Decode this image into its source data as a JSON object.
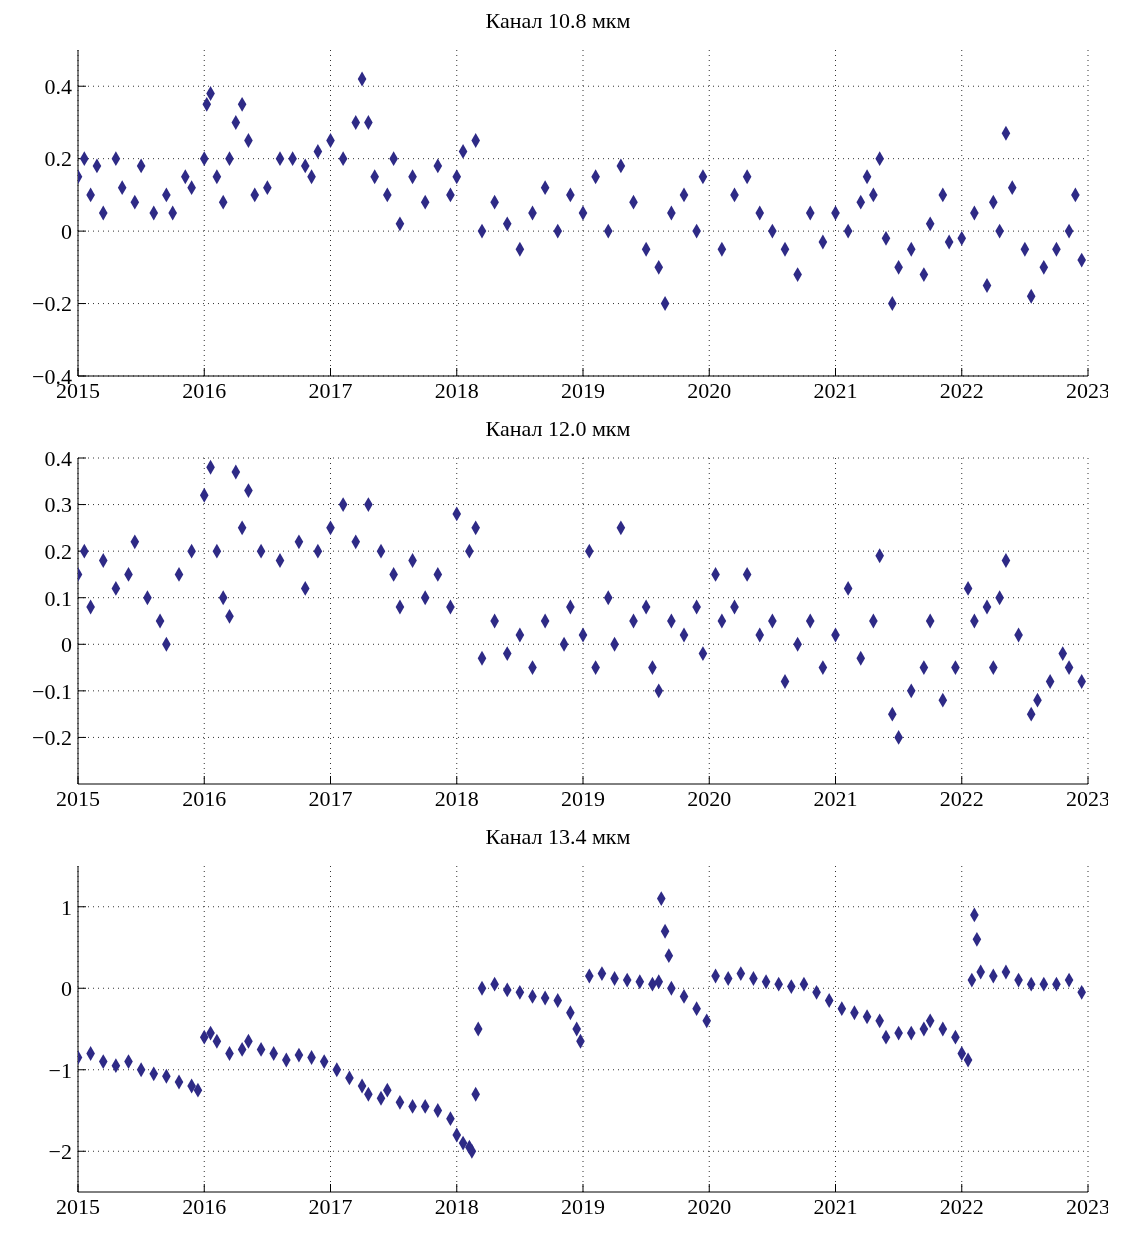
{
  "chart_data": [
    {
      "type": "scatter",
      "title": "Канал 10.8 мкм",
      "color": "#2e2a86",
      "marker": "diamond",
      "grid": true,
      "xlim": [
        2015,
        2023
      ],
      "xticks": [
        2015,
        2016,
        2017,
        2018,
        2019,
        2020,
        2021,
        2022,
        2023
      ],
      "ylim": [
        -0.4,
        0.5
      ],
      "yticks": [
        {
          "value": -0.4,
          "label": "−0.4"
        },
        {
          "value": -0.2,
          "label": "−0.2"
        },
        0,
        0.2,
        0.4
      ],
      "x": [
        2015.0,
        2015.05,
        2015.1,
        2015.15,
        2015.2,
        2015.3,
        2015.35,
        2015.45,
        2015.5,
        2015.6,
        2015.7,
        2015.75,
        2015.85,
        2015.9,
        2016.0,
        2016.02,
        2016.05,
        2016.1,
        2016.15,
        2016.2,
        2016.25,
        2016.3,
        2016.35,
        2016.4,
        2016.5,
        2016.6,
        2016.7,
        2016.8,
        2016.85,
        2016.9,
        2017.0,
        2017.1,
        2017.2,
        2017.25,
        2017.3,
        2017.35,
        2017.45,
        2017.5,
        2017.55,
        2017.65,
        2017.75,
        2017.85,
        2017.95,
        2018.0,
        2018.05,
        2018.15,
        2018.2,
        2018.3,
        2018.4,
        2018.5,
        2018.6,
        2018.7,
        2018.8,
        2018.9,
        2019.0,
        2019.1,
        2019.2,
        2019.3,
        2019.4,
        2019.5,
        2019.6,
        2019.65,
        2019.7,
        2019.8,
        2019.9,
        2019.95,
        2020.1,
        2020.2,
        2020.3,
        2020.4,
        2020.5,
        2020.6,
        2020.7,
        2020.8,
        2020.9,
        2021.0,
        2021.1,
        2021.2,
        2021.25,
        2021.3,
        2021.35,
        2021.4,
        2021.45,
        2021.5,
        2021.6,
        2021.7,
        2021.75,
        2021.85,
        2021.9,
        2022.0,
        2022.1,
        2022.2,
        2022.25,
        2022.3,
        2022.35,
        2022.4,
        2022.5,
        2022.55,
        2022.65,
        2022.75,
        2022.85,
        2022.9,
        2022.95
      ],
      "values": [
        0.15,
        0.2,
        0.1,
        0.18,
        0.05,
        0.2,
        0.12,
        0.08,
        0.18,
        0.05,
        0.1,
        0.05,
        0.15,
        0.12,
        0.2,
        0.35,
        0.38,
        0.15,
        0.08,
        0.2,
        0.3,
        0.35,
        0.25,
        0.1,
        0.12,
        0.2,
        0.2,
        0.18,
        0.15,
        0.22,
        0.25,
        0.2,
        0.3,
        0.42,
        0.3,
        0.15,
        0.1,
        0.2,
        0.02,
        0.15,
        0.08,
        0.18,
        0.1,
        0.15,
        0.22,
        0.25,
        0.0,
        0.08,
        0.02,
        -0.05,
        0.05,
        0.12,
        0.0,
        0.1,
        0.05,
        0.15,
        0.0,
        0.18,
        0.08,
        -0.05,
        -0.1,
        -0.2,
        0.05,
        0.1,
        0.0,
        0.15,
        -0.05,
        0.1,
        0.15,
        0.05,
        0.0,
        -0.05,
        -0.12,
        0.05,
        -0.03,
        0.05,
        0.0,
        0.08,
        0.15,
        0.1,
        0.2,
        -0.02,
        -0.2,
        -0.1,
        -0.05,
        -0.12,
        0.02,
        0.1,
        -0.03,
        -0.02,
        0.05,
        -0.15,
        0.08,
        0.0,
        0.27,
        0.12,
        -0.05,
        -0.18,
        -0.1,
        -0.05,
        0.0,
        0.1,
        -0.08
      ]
    },
    {
      "type": "scatter",
      "title": "Канал 12.0 мкм",
      "color": "#2e2a86",
      "marker": "diamond",
      "grid": true,
      "xlim": [
        2015,
        2023
      ],
      "xticks": [
        2015,
        2016,
        2017,
        2018,
        2019,
        2020,
        2021,
        2022,
        2023
      ],
      "ylim": [
        -0.3,
        0.4
      ],
      "yticks": [
        {
          "value": -0.2,
          "label": "−0.2"
        },
        {
          "value": -0.1,
          "label": "−0.1"
        },
        0,
        0.1,
        0.2,
        0.3,
        0.4
      ],
      "x": [
        2015.0,
        2015.05,
        2015.1,
        2015.2,
        2015.3,
        2015.4,
        2015.45,
        2015.55,
        2015.65,
        2015.7,
        2015.8,
        2015.9,
        2016.0,
        2016.05,
        2016.1,
        2016.15,
        2016.2,
        2016.25,
        2016.3,
        2016.35,
        2016.45,
        2016.6,
        2016.75,
        2016.8,
        2016.9,
        2017.0,
        2017.1,
        2017.2,
        2017.3,
        2017.4,
        2017.5,
        2017.55,
        2017.65,
        2017.75,
        2017.85,
        2017.95,
        2018.0,
        2018.1,
        2018.15,
        2018.2,
        2018.3,
        2018.4,
        2018.5,
        2018.6,
        2018.7,
        2018.85,
        2018.9,
        2019.0,
        2019.05,
        2019.1,
        2019.2,
        2019.25,
        2019.3,
        2019.4,
        2019.5,
        2019.55,
        2019.6,
        2019.7,
        2019.8,
        2019.9,
        2019.95,
        2020.05,
        2020.1,
        2020.2,
        2020.3,
        2020.4,
        2020.5,
        2020.6,
        2020.7,
        2020.8,
        2020.9,
        2021.0,
        2021.1,
        2021.2,
        2021.3,
        2021.35,
        2021.45,
        2021.5,
        2021.6,
        2021.7,
        2021.75,
        2021.85,
        2021.95,
        2022.05,
        2022.1,
        2022.2,
        2022.25,
        2022.3,
        2022.35,
        2022.45,
        2022.55,
        2022.6,
        2022.7,
        2022.8,
        2022.85,
        2022.95
      ],
      "values": [
        0.15,
        0.2,
        0.08,
        0.18,
        0.12,
        0.15,
        0.22,
        0.1,
        0.05,
        0.0,
        0.15,
        0.2,
        0.32,
        0.38,
        0.2,
        0.1,
        0.06,
        0.37,
        0.25,
        0.33,
        0.2,
        0.18,
        0.22,
        0.12,
        0.2,
        0.25,
        0.3,
        0.22,
        0.3,
        0.2,
        0.15,
        0.08,
        0.18,
        0.1,
        0.15,
        0.08,
        0.28,
        0.2,
        0.25,
        -0.03,
        0.05,
        -0.02,
        0.02,
        -0.05,
        0.05,
        0.0,
        0.08,
        0.02,
        0.2,
        -0.05,
        0.1,
        0.0,
        0.25,
        0.05,
        0.08,
        -0.05,
        -0.1,
        0.05,
        0.02,
        0.08,
        -0.02,
        0.15,
        0.05,
        0.08,
        0.15,
        0.02,
        0.05,
        -0.08,
        0.0,
        0.05,
        -0.05,
        0.02,
        0.12,
        -0.03,
        0.05,
        0.19,
        -0.15,
        -0.2,
        -0.1,
        -0.05,
        0.05,
        -0.12,
        -0.05,
        0.12,
        0.05,
        0.08,
        -0.05,
        0.1,
        0.18,
        0.02,
        -0.15,
        -0.12,
        -0.08,
        -0.02,
        -0.05,
        -0.08
      ]
    },
    {
      "type": "scatter",
      "title": "Канал 13.4 мкм",
      "color": "#2e2a86",
      "marker": "diamond",
      "grid": true,
      "xlim": [
        2015,
        2023
      ],
      "xticks": [
        2015,
        2016,
        2017,
        2018,
        2019,
        2020,
        2021,
        2022,
        2023
      ],
      "ylim": [
        -2.5,
        1.5
      ],
      "yticks": [
        {
          "value": -2,
          "label": "−2"
        },
        {
          "value": -1,
          "label": "−1"
        },
        0,
        1
      ],
      "x": [
        2015.0,
        2015.1,
        2015.2,
        2015.3,
        2015.4,
        2015.5,
        2015.6,
        2015.7,
        2015.8,
        2015.9,
        2015.95,
        2016.0,
        2016.05,
        2016.1,
        2016.2,
        2016.3,
        2016.35,
        2016.45,
        2016.55,
        2016.65,
        2016.75,
        2016.85,
        2016.95,
        2017.05,
        2017.15,
        2017.25,
        2017.3,
        2017.4,
        2017.45,
        2017.55,
        2017.65,
        2017.75,
        2017.85,
        2017.95,
        2018.0,
        2018.05,
        2018.1,
        2018.12,
        2018.15,
        2018.17,
        2018.2,
        2018.3,
        2018.4,
        2018.5,
        2018.6,
        2018.7,
        2018.8,
        2018.9,
        2018.95,
        2018.98,
        2019.05,
        2019.15,
        2019.25,
        2019.35,
        2019.45,
        2019.55,
        2019.6,
        2019.62,
        2019.65,
        2019.68,
        2019.7,
        2019.8,
        2019.9,
        2019.98,
        2020.05,
        2020.15,
        2020.25,
        2020.35,
        2020.45,
        2020.55,
        2020.65,
        2020.75,
        2020.85,
        2020.95,
        2021.05,
        2021.15,
        2021.25,
        2021.35,
        2021.4,
        2021.5,
        2021.6,
        2021.7,
        2021.75,
        2021.85,
        2021.95,
        2022.0,
        2022.05,
        2022.08,
        2022.1,
        2022.12,
        2022.15,
        2022.25,
        2022.35,
        2022.45,
        2022.55,
        2022.65,
        2022.75,
        2022.85,
        2022.95
      ],
      "values": [
        -0.85,
        -0.8,
        -0.9,
        -0.95,
        -0.9,
        -1.0,
        -1.05,
        -1.08,
        -1.15,
        -1.2,
        -1.25,
        -0.6,
        -0.55,
        -0.65,
        -0.8,
        -0.75,
        -0.65,
        -0.75,
        -0.8,
        -0.88,
        -0.82,
        -0.85,
        -0.9,
        -1.0,
        -1.1,
        -1.2,
        -1.3,
        -1.35,
        -1.25,
        -1.4,
        -1.45,
        -1.45,
        -1.5,
        -1.6,
        -1.8,
        -1.9,
        -1.95,
        -2.0,
        -1.3,
        -0.5,
        0.0,
        0.05,
        -0.02,
        -0.05,
        -0.1,
        -0.12,
        -0.15,
        -0.3,
        -0.5,
        -0.65,
        0.15,
        0.18,
        0.12,
        0.1,
        0.08,
        0.05,
        0.08,
        1.1,
        0.7,
        0.4,
        0.0,
        -0.1,
        -0.25,
        -0.4,
        0.15,
        0.12,
        0.18,
        0.12,
        0.08,
        0.05,
        0.02,
        0.05,
        -0.05,
        -0.15,
        -0.25,
        -0.3,
        -0.35,
        -0.4,
        -0.6,
        -0.55,
        -0.55,
        -0.5,
        -0.4,
        -0.5,
        -0.6,
        -0.8,
        -0.88,
        0.1,
        0.9,
        0.6,
        0.2,
        0.15,
        0.2,
        0.1,
        0.05,
        0.05,
        0.05,
        0.1,
        -0.05
      ]
    }
  ]
}
